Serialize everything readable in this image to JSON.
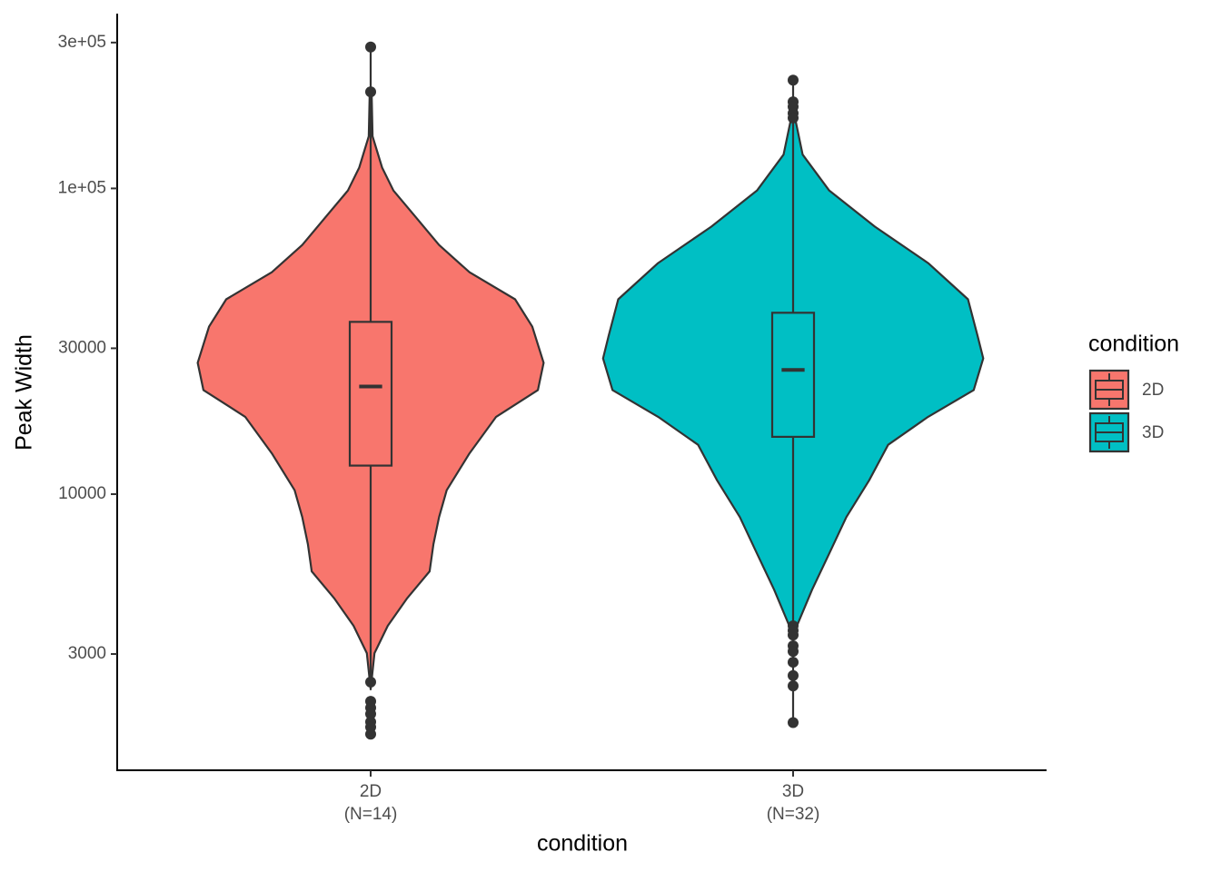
{
  "chart_data": {
    "type": "violin",
    "x_label": "condition",
    "y_label": "Peak Width",
    "legend_title": "condition",
    "legend_position": "right",
    "log_scale": true,
    "categories": [
      "2D",
      "3D"
    ],
    "n_labels": [
      "(N=14)",
      "(N=32)"
    ],
    "ylim": [
      1250,
      373000
    ],
    "yticks": [
      3000,
      10000,
      30000,
      {
        "value": 100000,
        "label": "1e+05"
      },
      {
        "value": 300000,
        "label": "3e+05"
      }
    ],
    "series": [
      {
        "name": "2D",
        "color": "#F8766D",
        "box": {
          "whisker_low": 2460,
          "q1": 12400,
          "median": 22500,
          "q3": 36600,
          "whisker_high": 290000
        },
        "outliers": [
          290000,
          207000,
          2430,
          2100,
          2000,
          1910,
          1800,
          1730,
          1640
        ],
        "violin": {
          "y": [
            209000,
            148000,
            117000,
            98400,
            80200,
            65300,
            53200,
            43400,
            35300,
            26900,
            21900,
            17900,
            13600,
            10300,
            8410,
            6860,
            5590,
            4550,
            3710,
            3020,
            2300
          ],
          "density": [
            0.005,
            0.01,
            0.06,
            0.12,
            0.24,
            0.36,
            0.52,
            0.76,
            0.85,
            0.91,
            0.88,
            0.66,
            0.52,
            0.4,
            0.36,
            0.33,
            0.31,
            0.19,
            0.09,
            0.02,
            0
          ]
        }
      },
      {
        "name": "3D",
        "color": "#00BFC4",
        "box": {
          "whisker_low": 1790,
          "q1": 15400,
          "median": 25500,
          "q3": 39200,
          "whisker_high": 226000
        },
        "outliers": [
          226000,
          192000,
          185000,
          176000,
          170000,
          3710,
          3580,
          3460,
          3190,
          3060,
          2820,
          2550,
          2360,
          1790
        ],
        "violin": {
          "y": [
            170000,
            129000,
            98400,
            75000,
            57000,
            43400,
            33000,
            27800,
            21900,
            17900,
            14500,
            11100,
            8410,
            6400,
            4870,
            3710,
            3460
          ],
          "density": [
            0.01,
            0.05,
            0.19,
            0.43,
            0.71,
            0.92,
            0.97,
            1,
            0.95,
            0.71,
            0.5,
            0.4,
            0.28,
            0.19,
            0.1,
            0.02,
            0
          ]
        }
      }
    ]
  }
}
